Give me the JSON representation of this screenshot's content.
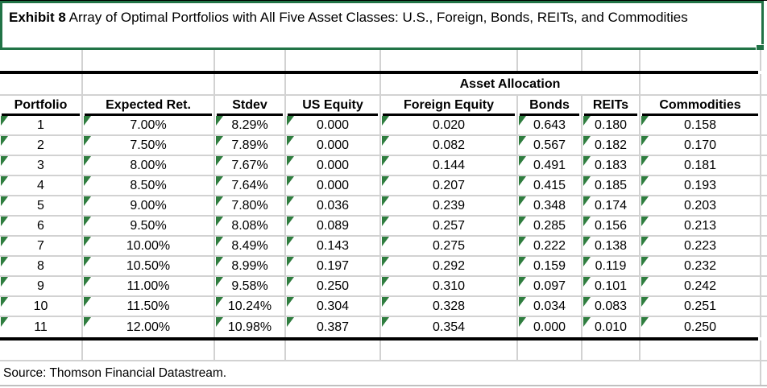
{
  "title": {
    "bold": "Exhibit 8",
    "rest": " Array of Optimal Portfolios with All Five Asset Classes: U.S., Foreign, Bonds, REITs, and Commodities"
  },
  "table": {
    "group_header": "Asset Allocation",
    "columns": [
      "Portfolio",
      "Expected Ret.",
      "Stdev",
      "US Equity",
      "Foreign Equity",
      "Bonds",
      "REITs",
      "Commodities"
    ],
    "rows": [
      [
        "1",
        "7.00%",
        "8.29%",
        "0.000",
        "0.020",
        "0.643",
        "0.180",
        "0.158"
      ],
      [
        "2",
        "7.50%",
        "7.89%",
        "0.000",
        "0.082",
        "0.567",
        "0.182",
        "0.170"
      ],
      [
        "3",
        "8.00%",
        "7.67%",
        "0.000",
        "0.144",
        "0.491",
        "0.183",
        "0.181"
      ],
      [
        "4",
        "8.50%",
        "7.64%",
        "0.000",
        "0.207",
        "0.415",
        "0.185",
        "0.193"
      ],
      [
        "5",
        "9.00%",
        "7.80%",
        "0.036",
        "0.239",
        "0.348",
        "0.174",
        "0.203"
      ],
      [
        "6",
        "9.50%",
        "8.08%",
        "0.089",
        "0.257",
        "0.285",
        "0.156",
        "0.213"
      ],
      [
        "7",
        "10.00%",
        "8.49%",
        "0.143",
        "0.275",
        "0.222",
        "0.138",
        "0.223"
      ],
      [
        "8",
        "10.50%",
        "8.99%",
        "0.197",
        "0.292",
        "0.159",
        "0.119",
        "0.232"
      ],
      [
        "9",
        "11.00%",
        "9.58%",
        "0.250",
        "0.310",
        "0.097",
        "0.101",
        "0.242"
      ],
      [
        "10",
        "11.50%",
        "10.24%",
        "0.304",
        "0.328",
        "0.034",
        "0.083",
        "0.251"
      ],
      [
        "11",
        "12.00%",
        "10.98%",
        "0.387",
        "0.354",
        "0.000",
        "0.010",
        "0.250"
      ]
    ]
  },
  "source": "Source: Thomson Financial Datastream.",
  "colors": {
    "selection_green": "#217346",
    "error_triangle_green": "#2f7d3f",
    "gridline_gray": "#d2d2d2",
    "rule_black": "#000000"
  }
}
